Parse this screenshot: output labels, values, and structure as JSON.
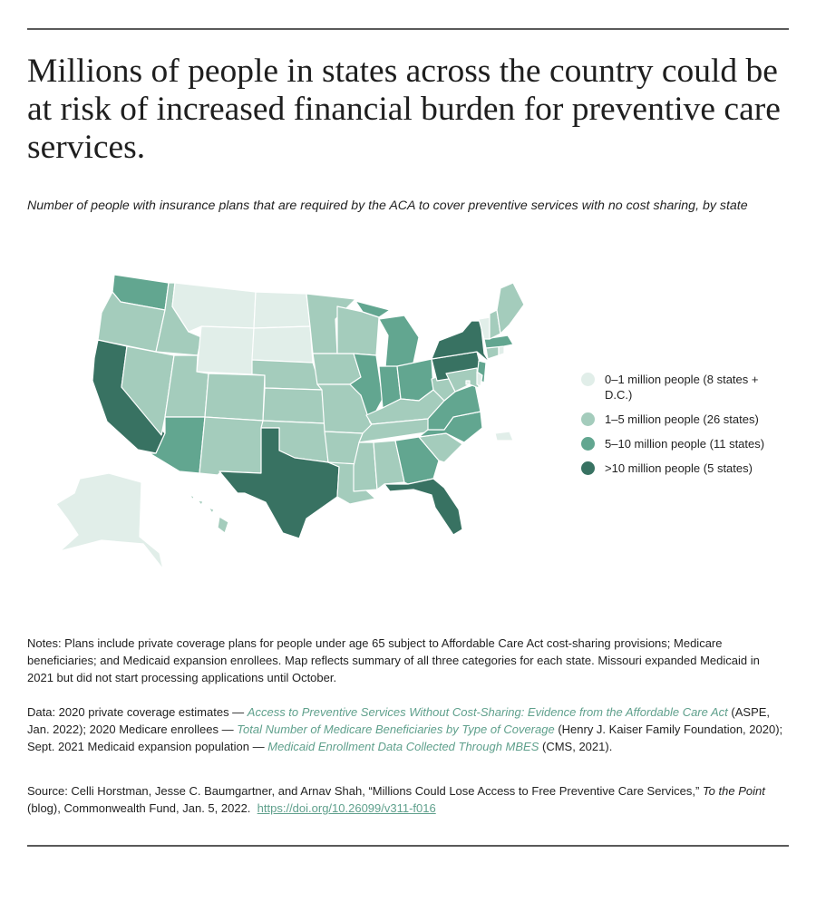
{
  "title": "Millions of people in states across the country could be at risk of increased financial burden for preventive care services.",
  "subtitle": "Number of people with insurance plans that are required by the ACA to cover preventive services with no cost sharing, by state",
  "colors": {
    "tier0": "#e1eee9",
    "tier1": "#a4ccbc",
    "tier2": "#62a690",
    "tier3": "#387262",
    "border": "#ffffff"
  },
  "legend": [
    {
      "label": "0–1 million people (8 states + D.C.)",
      "tier": "tier0"
    },
    {
      "label": "1–5 million people (26 states)",
      "tier": "tier1"
    },
    {
      "label": "5–10 million people (11 states)",
      "tier": "tier2"
    },
    {
      "label": ">10 million people (5 states)",
      "tier": "tier3"
    }
  ],
  "notes": {
    "text": "Notes: Plans include private coverage plans for people under age 65 subject to Affordable Care Act cost-sharing provisions; Medicare beneficiaries; and Medicaid expansion enrollees. Map reflects summary of all three categories for each state. Missouri expanded Medicaid in 2021 but did not start processing applications until October."
  },
  "data": {
    "prefix": "Data: 2020 private coverage estimates — ",
    "link1": "Access to Preventive Services Without Cost-Sharing: Evidence from the Affordable Care Act",
    "after1": " (ASPE, Jan. 2022); 2020 Medicare enrollees — ",
    "link2": "Total Number of Medicare Beneficiaries by Type of Coverage",
    "after2": " (Henry J. Kaiser Family Foundation, 2020); Sept. 2021 Medicaid expansion population — ",
    "link3": "Medicaid Enrollment Data Collected Through MBES",
    "after3": " (CMS, 2021)."
  },
  "source": {
    "prefix": "Source: Celli Horstman, Jesse C. Baumgartner, and Arnav Shah, “Millions Could Lose Access to Free Preventive Care Services,” ",
    "publication": "To the Point",
    "suffix": " (blog), Commonwealth Fund, Jan. 5, 2022.",
    "doi": "https://doi.org/10.26099/v311-f016"
  }
}
